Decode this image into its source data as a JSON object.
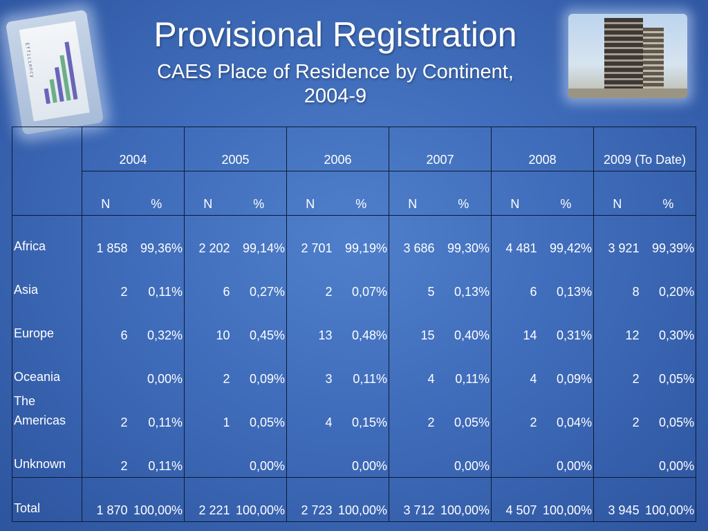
{
  "slide": {
    "title": "Provisional Registration",
    "subtitle_line1": "CAES Place of Residence by Continent,",
    "subtitle_line2": "2004-9"
  },
  "images": {
    "left": {
      "icon": "chart-on-paper-image",
      "caption": "Efficiency"
    },
    "right": {
      "icon": "office-building-image"
    }
  },
  "table": {
    "years": [
      "2004",
      "2005",
      "2006",
      "2007",
      "2008",
      "2009 (To Date)"
    ],
    "sub_n": "N",
    "sub_pct": "%",
    "rows": [
      {
        "label": "Africa",
        "cells": [
          [
            "1 858",
            "99,36%"
          ],
          [
            "2 202",
            "99,14%"
          ],
          [
            "2 701",
            "99,19%"
          ],
          [
            "3 686",
            "99,30%"
          ],
          [
            "4 481",
            "99,42%"
          ],
          [
            "3 921",
            "99,39%"
          ]
        ]
      },
      {
        "label": "Asia",
        "cells": [
          [
            "2",
            "0,11%"
          ],
          [
            "6",
            "0,27%"
          ],
          [
            "2",
            "0,07%"
          ],
          [
            "5",
            "0,13%"
          ],
          [
            "6",
            "0,13%"
          ],
          [
            "8",
            "0,20%"
          ]
        ]
      },
      {
        "label": "Europe",
        "cells": [
          [
            "6",
            "0,32%"
          ],
          [
            "10",
            "0,45%"
          ],
          [
            "13",
            "0,48%"
          ],
          [
            "15",
            "0,40%"
          ],
          [
            "14",
            "0,31%"
          ],
          [
            "12",
            "0,30%"
          ]
        ]
      },
      {
        "label": "Oceania",
        "cells": [
          [
            "",
            "0,00%"
          ],
          [
            "2",
            "0,09%"
          ],
          [
            "3",
            "0,11%"
          ],
          [
            "4",
            "0,11%"
          ],
          [
            "4",
            "0,09%"
          ],
          [
            "2",
            "0,05%"
          ]
        ]
      },
      {
        "label": "The Americas",
        "cells": [
          [
            "2",
            "0,11%"
          ],
          [
            "1",
            "0,05%"
          ],
          [
            "4",
            "0,15%"
          ],
          [
            "2",
            "0,05%"
          ],
          [
            "2",
            "0,04%"
          ],
          [
            "2",
            "0,05%"
          ]
        ]
      },
      {
        "label": "Unknown",
        "cells": [
          [
            "2",
            "0,11%"
          ],
          [
            "",
            "0,00%"
          ],
          [
            "",
            "0,00%"
          ],
          [
            "",
            "0,00%"
          ],
          [
            "",
            "0,00%"
          ],
          [
            "",
            "0,00%"
          ]
        ]
      },
      {
        "label": "Total",
        "cells": [
          [
            "1 870",
            "100,00%"
          ],
          [
            "2 221",
            "100,00%"
          ],
          [
            "2 723",
            "100,00%"
          ],
          [
            "3 712",
            "100,00%"
          ],
          [
            "4 507",
            "100,00%"
          ],
          [
            "3 945",
            "100,00%"
          ]
        ]
      }
    ]
  }
}
